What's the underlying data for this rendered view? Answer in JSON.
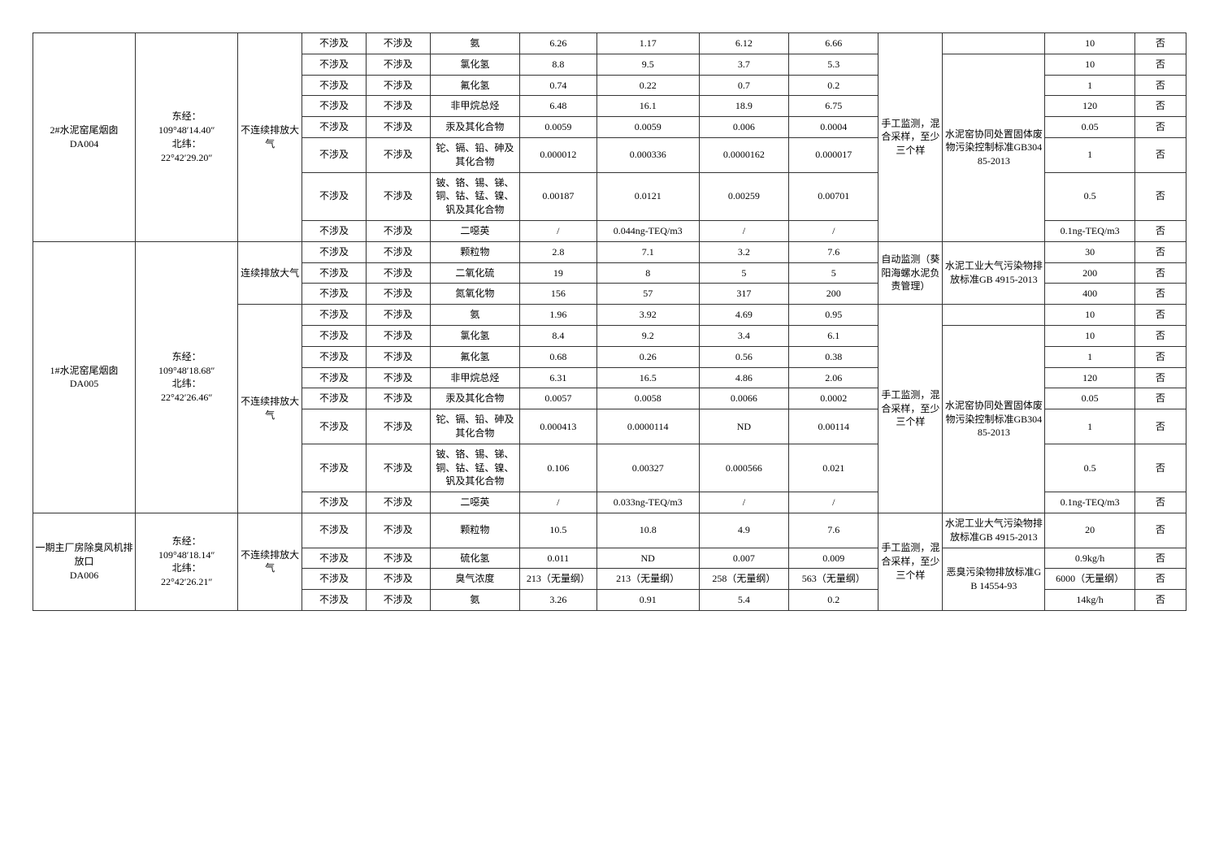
{
  "stations": [
    {
      "name": "2#水泥窑尾烟囱\nDA004",
      "coords": "东经：\n109°48′14.40″\n北纬：\n22°42′29.20″",
      "groups": [
        {
          "mode": "不连续排放大气",
          "rows": [
            {
              "c4": "不涉及",
              "c5": "不涉及",
              "c6": "氨",
              "c7": "6.26",
              "c8": "1.17",
              "c9": "6.12",
              "c10": "6.66",
              "mon": "手工监测，混合采样，至少三个样",
              "std": "水泥窑协同处置固体废物污染控制标准GB30485-2013",
              "c13": "10",
              "c14": "否",
              "mon_span": 8,
              "std_span": 7,
              "std_offset": 1
            },
            {
              "c4": "不涉及",
              "c5": "不涉及",
              "c6": "氯化氢",
              "c7": "8.8",
              "c8": "9.5",
              "c9": "3.7",
              "c10": "5.3",
              "c13": "10",
              "c14": "否"
            },
            {
              "c4": "不涉及",
              "c5": "不涉及",
              "c6": "氟化氢",
              "c7": "0.74",
              "c8": "0.22",
              "c9": "0.7",
              "c10": "0.2",
              "c13": "1",
              "c14": "否"
            },
            {
              "c4": "不涉及",
              "c5": "不涉及",
              "c6": "非甲烷总烃",
              "c7": "6.48",
              "c8": "16.1",
              "c9": "18.9",
              "c10": "6.75",
              "c13": "120",
              "c14": "否"
            },
            {
              "c4": "不涉及",
              "c5": "不涉及",
              "c6": "汞及其化合物",
              "c7": "0.0059",
              "c8": "0.0059",
              "c9": "0.006",
              "c10": "0.0004",
              "c13": "0.05",
              "c14": "否"
            },
            {
              "c4": "不涉及",
              "c5": "不涉及",
              "c6": "铊、镉、铅、砷及其化合物",
              "c7": "0.000012",
              "c8": "0.000336",
              "c9": "0.0000162",
              "c10": "0.000017",
              "c13": "1",
              "c14": "否"
            },
            {
              "c4": "不涉及",
              "c5": "不涉及",
              "c6": "铍、铬、锡、锑、铜、钴、锰、镍、钒及其化合物",
              "c7": "0.00187",
              "c8": "0.0121",
              "c9": "0.00259",
              "c10": "0.00701",
              "c13": "0.5",
              "c14": "否"
            },
            {
              "c4": "不涉及",
              "c5": "不涉及",
              "c6": "二噁英",
              "c7": "/",
              "c8": "0.044ng-TEQ/m3",
              "c9": "/",
              "c10": "/",
              "c13": "0.1ng-TEQ/m3",
              "c14": "否"
            }
          ]
        }
      ]
    },
    {
      "name": "1#水泥窑尾烟囱\nDA005",
      "coords": "东经：\n109°48′18.68″\n北纬：\n22°42′26.46″",
      "groups": [
        {
          "mode": "连续排放大气",
          "rows": [
            {
              "c4": "不涉及",
              "c5": "不涉及",
              "c6": "颗粒物",
              "c7": "2.8",
              "c8": "7.1",
              "c9": "3.2",
              "c10": "7.6",
              "mon": "自动监测（葵阳海螺水泥负责管理）",
              "std": "水泥工业大气污染物排放标准GB 4915-2013",
              "c13": "30",
              "c14": "否",
              "mon_span": 3,
              "std_span": 3
            },
            {
              "c4": "不涉及",
              "c5": "不涉及",
              "c6": "二氧化硫",
              "c7": "19",
              "c8": "8",
              "c9": "5",
              "c10": "5",
              "c13": "200",
              "c14": "否"
            },
            {
              "c4": "不涉及",
              "c5": "不涉及",
              "c6": "氮氧化物",
              "c7": "156",
              "c8": "57",
              "c9": "317",
              "c10": "200",
              "c13": "400",
              "c14": "否"
            }
          ]
        },
        {
          "mode": "不连续排放大气",
          "rows": [
            {
              "c4": "不涉及",
              "c5": "不涉及",
              "c6": "氨",
              "c7": "1.96",
              "c8": "3.92",
              "c9": "4.69",
              "c10": "0.95",
              "mon": "手工监测，混合采样，至少三个样",
              "std": "水泥窑协同处置固体废物污染控制标准GB30485-2013",
              "c13": "10",
              "c14": "否",
              "mon_span": 8,
              "std_span": 7,
              "std_offset": 1
            },
            {
              "c4": "不涉及",
              "c5": "不涉及",
              "c6": "氯化氢",
              "c7": "8.4",
              "c8": "9.2",
              "c9": "3.4",
              "c10": "6.1",
              "c13": "10",
              "c14": "否"
            },
            {
              "c4": "不涉及",
              "c5": "不涉及",
              "c6": "氟化氢",
              "c7": "0.68",
              "c8": "0.26",
              "c9": "0.56",
              "c10": "0.38",
              "c13": "1",
              "c14": "否"
            },
            {
              "c4": "不涉及",
              "c5": "不涉及",
              "c6": "非甲烷总烃",
              "c7": "6.31",
              "c8": "16.5",
              "c9": "4.86",
              "c10": "2.06",
              "c13": "120",
              "c14": "否"
            },
            {
              "c4": "不涉及",
              "c5": "不涉及",
              "c6": "汞及其化合物",
              "c7": "0.0057",
              "c8": "0.0058",
              "c9": "0.0066",
              "c10": "0.0002",
              "c13": "0.05",
              "c14": "否"
            },
            {
              "c4": "不涉及",
              "c5": "不涉及",
              "c6": "铊、镉、铅、砷及其化合物",
              "c7": "0.000413",
              "c8": "0.0000114",
              "c9": "ND",
              "c10": "0.00114",
              "c13": "1",
              "c14": "否"
            },
            {
              "c4": "不涉及",
              "c5": "不涉及",
              "c6": "铍、铬、锡、锑、铜、钴、锰、镍、钒及其化合物",
              "c7": "0.106",
              "c8": "0.00327",
              "c9": "0.000566",
              "c10": "0.021",
              "c13": "0.5",
              "c14": "否"
            },
            {
              "c4": "不涉及",
              "c5": "不涉及",
              "c6": "二噁英",
              "c7": "/",
              "c8": "0.033ng-TEQ/m3",
              "c9": "/",
              "c10": "/",
              "c13": "0.1ng-TEQ/m3",
              "c14": "否"
            }
          ]
        }
      ]
    },
    {
      "name": "一期主厂房除臭风机排放口\nDA006",
      "coords": "东经：\n109°48′18.14″\n北纬：\n22°42′26.21″",
      "groups": [
        {
          "mode": "不连续排放大气",
          "rows": [
            {
              "c4": "不涉及",
              "c5": "不涉及",
              "c6": "颗粒物",
              "c7": "10.5",
              "c8": "10.8",
              "c9": "4.9",
              "c10": "7.6",
              "mon": "手工监测，混合采样，至少三个样",
              "std": "水泥工业大气污染物排放标准GB 4915-2013",
              "c13": "20",
              "c14": "否",
              "mon_span": 4,
              "std_span": 1
            },
            {
              "c4": "不涉及",
              "c5": "不涉及",
              "c6": "硫化氢",
              "c7": "0.011",
              "c8": "ND",
              "c9": "0.007",
              "c10": "0.009",
              "std": "恶臭污染物排放标准GB 14554-93",
              "c13": "0.9kg/h",
              "c14": "否",
              "std_span": 3
            },
            {
              "c4": "不涉及",
              "c5": "不涉及",
              "c6": "臭气浓度",
              "c7": "213（无量纲）",
              "c8": "213（无量纲）",
              "c9": "258（无量纲）",
              "c10": "563（无量纲）",
              "c13": "6000（无量纲）",
              "c14": "否"
            },
            {
              "c4": "不涉及",
              "c5": "不涉及",
              "c6": "氨",
              "c7": "3.26",
              "c8": "0.91",
              "c9": "5.4",
              "c10": "0.2",
              "c13": "14kg/h",
              "c14": "否"
            }
          ]
        }
      ]
    }
  ]
}
